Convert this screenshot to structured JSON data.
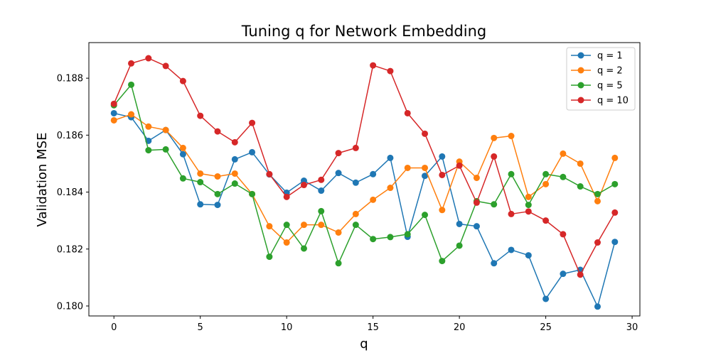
{
  "chart_data": {
    "type": "line",
    "title": "Tuning q for Network Embedding",
    "xlabel": "q",
    "ylabel": "Validation MSE",
    "xlim": [
      -1.45,
      30.45
    ],
    "ylim": [
      0.17965,
      0.18925
    ],
    "xticks": [
      0,
      5,
      10,
      15,
      20,
      25,
      30
    ],
    "xtick_labels": [
      "0",
      "5",
      "10",
      "15",
      "20",
      "25",
      "30"
    ],
    "yticks": [
      0.18,
      0.182,
      0.184,
      0.186,
      0.188
    ],
    "ytick_labels": [
      "0.180",
      "0.182",
      "0.184",
      "0.186",
      "0.188"
    ],
    "grid": false,
    "legend_position": "top-right",
    "x": [
      0,
      1,
      2,
      3,
      4,
      5,
      6,
      7,
      8,
      9,
      10,
      11,
      12,
      13,
      14,
      15,
      16,
      17,
      18,
      19,
      20,
      21,
      22,
      23,
      24,
      25,
      26,
      27,
      28,
      29
    ],
    "series": [
      {
        "name": "q = 1",
        "color": "#1f77b4",
        "values": [
          0.18677,
          0.18663,
          0.1858,
          0.18618,
          0.18533,
          0.18357,
          0.18355,
          0.18515,
          0.1854,
          0.18462,
          0.18398,
          0.1844,
          0.18405,
          0.18467,
          0.18433,
          0.18463,
          0.1852,
          0.18243,
          0.18457,
          0.18525,
          0.18288,
          0.1828,
          0.1815,
          0.18197,
          0.18178,
          0.18025,
          0.18113,
          0.18127,
          0.17998,
          0.18225
        ]
      },
      {
        "name": "q = 2",
        "color": "#ff7f0e",
        "values": [
          0.18652,
          0.18673,
          0.1863,
          0.18618,
          0.18555,
          0.18465,
          0.18455,
          0.18465,
          0.18393,
          0.1828,
          0.18223,
          0.18285,
          0.18285,
          0.18258,
          0.18323,
          0.18373,
          0.18415,
          0.18485,
          0.18485,
          0.18337,
          0.18507,
          0.1845,
          0.1859,
          0.18597,
          0.18383,
          0.18428,
          0.18535,
          0.185,
          0.18368,
          0.1852
        ]
      },
      {
        "name": "q = 5",
        "color": "#2ca02c",
        "values": [
          0.18705,
          0.18777,
          0.18547,
          0.1855,
          0.18448,
          0.18435,
          0.18393,
          0.1843,
          0.18393,
          0.18173,
          0.18285,
          0.18202,
          0.18333,
          0.1815,
          0.18285,
          0.18235,
          0.18242,
          0.18252,
          0.1832,
          0.18158,
          0.18212,
          0.18368,
          0.18357,
          0.18463,
          0.18355,
          0.18463,
          0.18453,
          0.1842,
          0.18393,
          0.18428
        ]
      },
      {
        "name": "q = 10",
        "color": "#d62728",
        "values": [
          0.1871,
          0.18852,
          0.1887,
          0.18843,
          0.1879,
          0.18668,
          0.18613,
          0.18575,
          0.18643,
          0.18463,
          0.18383,
          0.18425,
          0.18443,
          0.18537,
          0.18555,
          0.18845,
          0.18825,
          0.18677,
          0.18605,
          0.1846,
          0.18493,
          0.18363,
          0.18525,
          0.18323,
          0.18332,
          0.183,
          0.18252,
          0.1811,
          0.18223,
          0.18328
        ]
      }
    ]
  }
}
